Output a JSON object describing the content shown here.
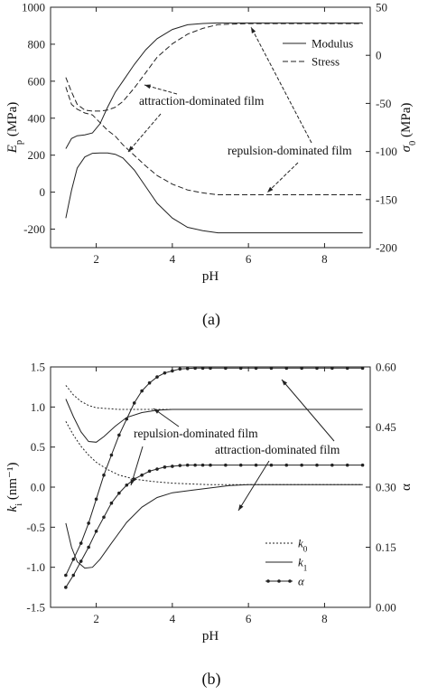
{
  "chart_data": [
    {
      "type": "line",
      "caption": "(a)",
      "xlabel": "pH",
      "ylabel_left": "E_p (MPa)",
      "ylabel_right": "σ_0 (MPa)",
      "xlim": [
        0.8,
        9.2
      ],
      "ylim_left": [
        -300,
        1000
      ],
      "ylim_right": [
        -200,
        50
      ],
      "xticks": [
        2,
        4,
        6,
        8
      ],
      "yticks_left": [
        -200,
        0,
        200,
        400,
        600,
        800,
        1000
      ],
      "yticks_right": [
        -200,
        -150,
        -100,
        -50,
        0,
        50
      ],
      "legend": [
        {
          "label": "Modulus",
          "style": "solid"
        },
        {
          "label": "Stress",
          "style": "dashed"
        }
      ],
      "annotations": [
        "attraction-dominated film",
        "repulsion-dominated film"
      ],
      "series": [
        {
          "legend": "Modulus",
          "axis": "left",
          "style": "solid",
          "x": [
            1.2,
            1.35,
            1.5,
            1.7,
            1.9,
            2.1,
            2.3,
            2.5,
            2.7,
            3.0,
            3.3,
            3.6,
            4.0,
            4.4,
            4.8,
            5.2,
            6.0,
            7.0,
            8.0,
            9.0
          ],
          "y": [
            235,
            290,
            305,
            310,
            320,
            370,
            460,
            540,
            600,
            690,
            770,
            830,
            880,
            905,
            912,
            915,
            915,
            915,
            915,
            915
          ]
        },
        {
          "legend": "Modulus",
          "axis": "left",
          "style": "solid",
          "x": [
            1.2,
            1.35,
            1.5,
            1.7,
            1.9,
            2.1,
            2.3,
            2.5,
            2.7,
            3.0,
            3.3,
            3.6,
            4.0,
            4.4,
            4.8,
            5.2,
            6.0,
            7.0,
            8.0,
            9.0
          ],
          "y": [
            -140,
            10,
            130,
            190,
            210,
            212,
            212,
            205,
            185,
            120,
            30,
            -60,
            -140,
            -190,
            -208,
            -220,
            -220,
            -220,
            -220,
            -220
          ]
        },
        {
          "legend": "Stress",
          "axis": "right",
          "style": "dashed",
          "x": [
            1.2,
            1.35,
            1.5,
            1.7,
            1.9,
            2.1,
            2.3,
            2.5,
            2.7,
            3.0,
            3.3,
            3.6,
            4.0,
            4.4,
            4.8,
            5.2,
            6.0,
            7.0,
            8.0,
            9.0
          ],
          "y": [
            -23,
            -38,
            -51,
            -57,
            -58,
            -58,
            -57,
            -54,
            -48,
            -34,
            -18,
            -2,
            12,
            22,
            28,
            32,
            33,
            33,
            33,
            33
          ]
        },
        {
          "legend": "Stress",
          "axis": "right",
          "style": "dashed",
          "x": [
            1.2,
            1.35,
            1.5,
            1.7,
            1.9,
            2.1,
            2.3,
            2.5,
            2.7,
            3.0,
            3.3,
            3.6,
            4.0,
            4.4,
            4.8,
            5.2,
            6.0,
            7.0,
            8.0,
            9.0
          ],
          "y": [
            -33,
            -51,
            -56,
            -60,
            -62,
            -70,
            -78,
            -84,
            -93,
            -104,
            -115,
            -125,
            -134,
            -140,
            -143,
            -145,
            -145,
            -145,
            -145,
            -145
          ]
        }
      ]
    },
    {
      "type": "line",
      "caption": "(b)",
      "xlabel": "pH",
      "ylabel_left": "k_i (nm⁻¹)",
      "ylabel_right": "α",
      "xlim": [
        0.8,
        9.2
      ],
      "ylim_left": [
        -1.5,
        1.5
      ],
      "ylim_right": [
        0.0,
        0.6
      ],
      "xticks": [
        2,
        4,
        6,
        8
      ],
      "yticks_left": [
        -1.5,
        -1.0,
        -0.5,
        0.0,
        0.5,
        1.0,
        1.5
      ],
      "yticks_right": [
        0.0,
        0.15,
        0.3,
        0.45,
        0.6
      ],
      "legend": [
        {
          "label": "k_0",
          "style": "dotted"
        },
        {
          "label": "k_1",
          "style": "solid"
        },
        {
          "label": "α",
          "style": "dot-line"
        }
      ],
      "annotations": [
        "repulsion-dominated film",
        "attraction-dominated film"
      ],
      "series": [
        {
          "legend": "k_0",
          "axis": "left",
          "style": "dotted",
          "x": [
            1.2,
            1.4,
            1.6,
            1.8,
            2.0,
            2.3,
            2.6,
            3.0,
            3.5,
            4.0,
            5.0,
            6.0,
            9.0
          ],
          "y": [
            1.27,
            1.15,
            1.07,
            1.02,
            0.99,
            0.98,
            0.97,
            0.97,
            0.97,
            0.97,
            0.97,
            0.97,
            0.97
          ]
        },
        {
          "legend": "k_0",
          "axis": "left",
          "style": "dotted",
          "x": [
            1.2,
            1.4,
            1.6,
            1.8,
            2.0,
            2.3,
            2.6,
            3.0,
            3.5,
            4.0,
            4.5,
            5.0,
            6.0,
            9.0
          ],
          "y": [
            0.82,
            0.65,
            0.51,
            0.4,
            0.31,
            0.22,
            0.15,
            0.1,
            0.07,
            0.05,
            0.04,
            0.03,
            0.03,
            0.03
          ]
        },
        {
          "legend": "k_1",
          "axis": "left",
          "style": "solid",
          "x": [
            1.2,
            1.4,
            1.6,
            1.8,
            2.0,
            2.2,
            2.5,
            2.8,
            3.2,
            3.6,
            4.0,
            4.5,
            5.0,
            6.0,
            9.0
          ],
          "y": [
            1.1,
            0.88,
            0.69,
            0.57,
            0.56,
            0.63,
            0.76,
            0.87,
            0.93,
            0.96,
            0.97,
            0.97,
            0.97,
            0.97,
            0.97
          ]
        },
        {
          "legend": "k_1",
          "axis": "left",
          "style": "solid",
          "x": [
            1.2,
            1.35,
            1.5,
            1.7,
            1.9,
            2.1,
            2.4,
            2.8,
            3.2,
            3.6,
            4.0,
            4.5,
            5.0,
            5.5,
            6.0,
            9.0
          ],
          "y": [
            -0.45,
            -0.75,
            -0.93,
            -1.01,
            -1.0,
            -0.9,
            -0.7,
            -0.44,
            -0.25,
            -0.13,
            -0.07,
            -0.04,
            -0.01,
            0.02,
            0.03,
            0.03
          ]
        },
        {
          "legend": "α",
          "axis": "right",
          "style": "dot-line",
          "x": [
            1.2,
            1.4,
            1.6,
            1.8,
            2.0,
            2.2,
            2.4,
            2.6,
            2.8,
            3.0,
            3.2,
            3.4,
            3.6,
            3.8,
            4.0,
            4.2,
            4.4,
            4.6,
            4.8,
            5.0,
            5.4,
            5.8,
            6.2,
            6.6,
            7.0,
            7.4,
            7.8,
            8.2,
            8.6,
            9.0
          ],
          "y": [
            0.08,
            0.12,
            0.16,
            0.21,
            0.27,
            0.33,
            0.38,
            0.43,
            0.47,
            0.51,
            0.54,
            0.56,
            0.575,
            0.585,
            0.59,
            0.595,
            0.596,
            0.597,
            0.597,
            0.597,
            0.597,
            0.597,
            0.597,
            0.597,
            0.597,
            0.597,
            0.597,
            0.597,
            0.597,
            0.597
          ]
        },
        {
          "legend": "α",
          "axis": "right",
          "style": "dot-line",
          "x": [
            1.2,
            1.4,
            1.6,
            1.8,
            2.0,
            2.2,
            2.4,
            2.6,
            2.8,
            3.0,
            3.2,
            3.4,
            3.6,
            3.8,
            4.0,
            4.2,
            4.4,
            4.6,
            4.8,
            5.0,
            5.4,
            5.8,
            6.2,
            6.6,
            7.0,
            7.4,
            7.8,
            8.2,
            8.6,
            9.0
          ],
          "y": [
            0.05,
            0.08,
            0.115,
            0.15,
            0.19,
            0.225,
            0.26,
            0.285,
            0.305,
            0.32,
            0.33,
            0.34,
            0.345,
            0.35,
            0.352,
            0.354,
            0.355,
            0.355,
            0.355,
            0.355,
            0.355,
            0.355,
            0.355,
            0.355,
            0.355,
            0.355,
            0.355,
            0.355,
            0.355,
            0.355
          ]
        }
      ]
    }
  ]
}
